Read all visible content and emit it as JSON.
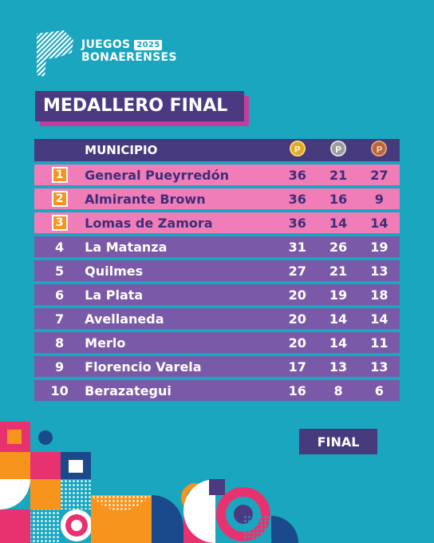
{
  "logo": {
    "line1": "JUEGOS",
    "year": "2025",
    "line2": "BONAERENSES"
  },
  "title": "MEDALLERO FINAL",
  "table": {
    "header": {
      "municipio": "MUNICIPIO",
      "gold_icon": "gold-medal-icon",
      "silver_icon": "silver-medal-icon",
      "bronze_icon": "bronze-medal-icon"
    },
    "rows": [
      {
        "rank": "1",
        "name": "General Pueyrredón",
        "gold": "36",
        "silver": "21",
        "bronze": "27"
      },
      {
        "rank": "2",
        "name": "Almirante Brown",
        "gold": "36",
        "silver": "16",
        "bronze": "9"
      },
      {
        "rank": "3",
        "name": "Lomas de Zamora",
        "gold": "36",
        "silver": "14",
        "bronze": "14"
      },
      {
        "rank": "4",
        "name": "La Matanza",
        "gold": "31",
        "silver": "26",
        "bronze": "19"
      },
      {
        "rank": "5",
        "name": "Quilmes",
        "gold": "27",
        "silver": "21",
        "bronze": "13"
      },
      {
        "rank": "6",
        "name": "La Plata",
        "gold": "20",
        "silver": "19",
        "bronze": "18"
      },
      {
        "rank": "7",
        "name": "Avellaneda",
        "gold": "20",
        "silver": "14",
        "bronze": "14"
      },
      {
        "rank": "8",
        "name": "Merlo",
        "gold": "20",
        "silver": "14",
        "bronze": "11"
      },
      {
        "rank": "9",
        "name": "Florencio Varela",
        "gold": "17",
        "silver": "13",
        "bronze": "13"
      },
      {
        "rank": "10",
        "name": "Berazategui",
        "gold": "16",
        "silver": "8",
        "bronze": "6"
      }
    ]
  },
  "badge": "FINAL",
  "colors": {
    "background": "#1aa6bf",
    "header": "#473a7c",
    "podium": "#f07cb8",
    "rest": "#7a5aa8",
    "accent": "#c43d9c",
    "rank_box": "#f7941d"
  }
}
